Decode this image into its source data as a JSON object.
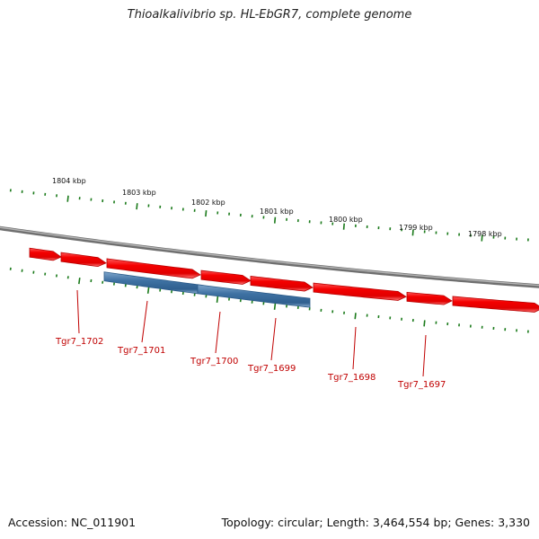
{
  "title": "Thioalkalivibrio sp. HL-EbGR7, complete genome",
  "footer": {
    "accession": "Accession: NC_011901",
    "summary": "Topology: circular; Length: 3,464,554 bp; Genes: 3,330"
  },
  "colors": {
    "backbone": "#8a8a8a",
    "gene_forward": "#ff1010",
    "gene_selected": "#3d6f9e",
    "gene_label": "#c00000",
    "tick": "#1a7a1a"
  },
  "scale_labels": [
    "1804 kbp",
    "1803 kbp",
    "1802 kbp",
    "1801 kbp",
    "1800 kbp",
    "1799 kbp",
    "1798 kbp"
  ],
  "gene_labels": [
    "Tgr7_1702",
    "Tgr7_1701",
    "Tgr7_1700",
    "Tgr7_1699",
    "Tgr7_1698",
    "Tgr7_1697"
  ]
}
